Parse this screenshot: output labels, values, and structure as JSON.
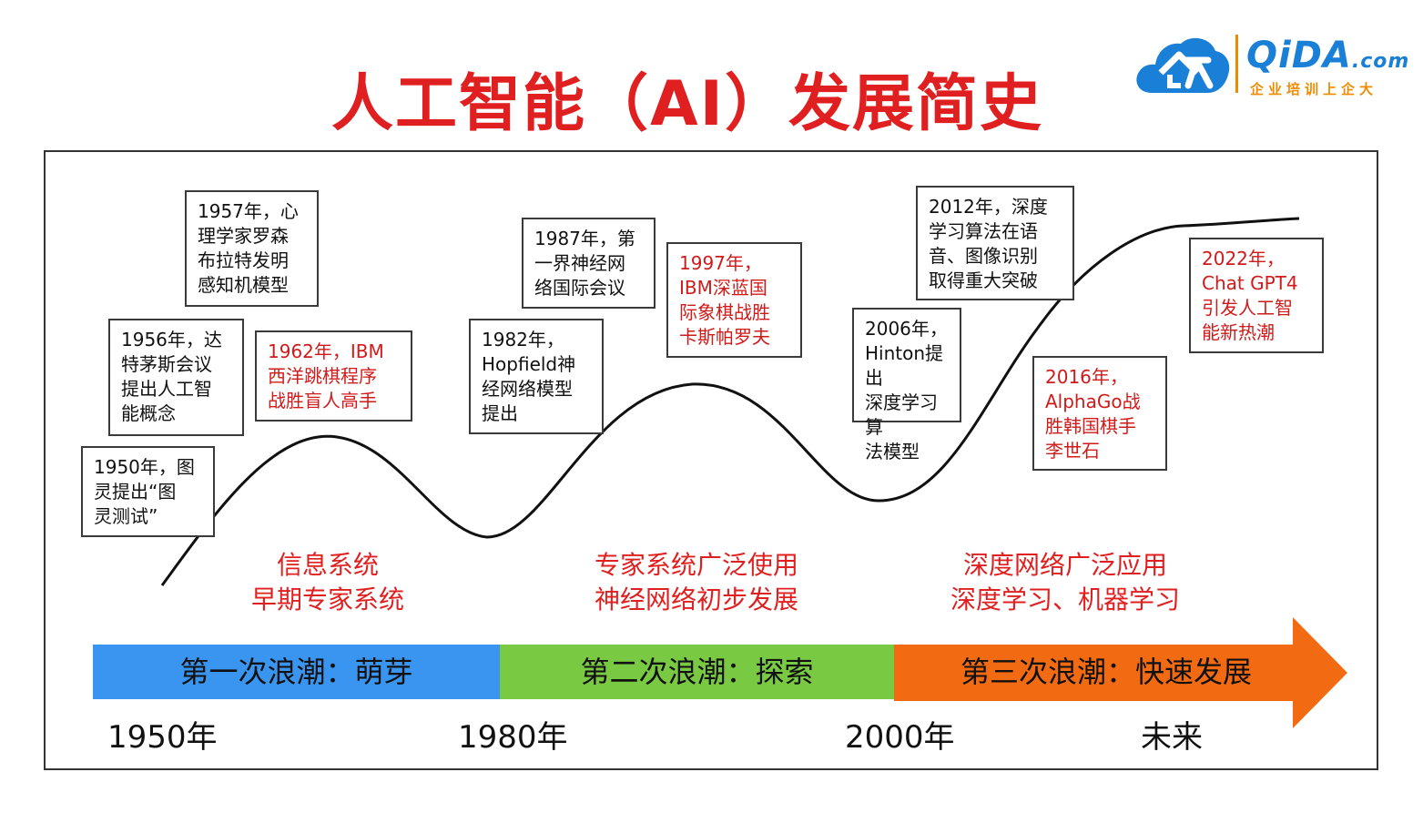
{
  "title": "人工智能（AI）发展简史",
  "logo": {
    "brand": "QiDA",
    "suffix": ".com",
    "slogan": "企业培训上企大",
    "colors": {
      "primary": "#1a7fd6",
      "accent": "#f08a00"
    }
  },
  "events": [
    {
      "text": "1957年，心\n理学家罗森\n布拉特发明\n感知机模型",
      "highlight": false
    },
    {
      "text": "1956年，达\n特茅斯会议\n提出人工智\n能概念",
      "highlight": false
    },
    {
      "text": "1962年，IBM\n西洋跳棋程序\n战胜盲人高手",
      "highlight": true
    },
    {
      "text": "1950年，图\n灵提出“图\n灵测试”",
      "highlight": false
    },
    {
      "text": "1987年，第\n一界神经网\n络国际会议",
      "highlight": false
    },
    {
      "text": "1982年，\nHopfield神\n经网络模型\n提出",
      "highlight": false
    },
    {
      "text": "1997年，\nIBM深蓝国\n际象棋战胜\n卡斯帕罗夫",
      "highlight": true
    },
    {
      "text": "2012年，深度\n学习算法在语\n音、图像识别\n取得重大突破",
      "highlight": false
    },
    {
      "text": "2006年，\nHinton提出\n深度学习算\n法模型",
      "highlight": false
    },
    {
      "text": "2022年，\nChat GPT4\n引发人工智\n能新热潮",
      "highlight": true
    },
    {
      "text": "2016年，\nAlphaGo战\n胜韩国棋手\n李世石",
      "highlight": true
    }
  ],
  "phases": [
    {
      "line1": "信息系统",
      "line2": "早期专家系统"
    },
    {
      "line1": "专家系统广泛使用",
      "line2": "神经网络初步发展"
    },
    {
      "line1": "深度网络广泛应用",
      "line2": "深度学习、机器学习"
    }
  ],
  "waves": [
    {
      "label": "第一次浪潮：萌芽",
      "color": "#3a95f0"
    },
    {
      "label": "第二次浪潮：探索",
      "color": "#7ac943"
    },
    {
      "label": "第三次浪潮：快速发展",
      "color": "#f26b13"
    }
  ],
  "years": [
    "1950年",
    "1980年",
    "2000年",
    "未来"
  ],
  "colors": {
    "title": "#e02020",
    "curve": "#111111",
    "highlight": "#d11a1a"
  }
}
